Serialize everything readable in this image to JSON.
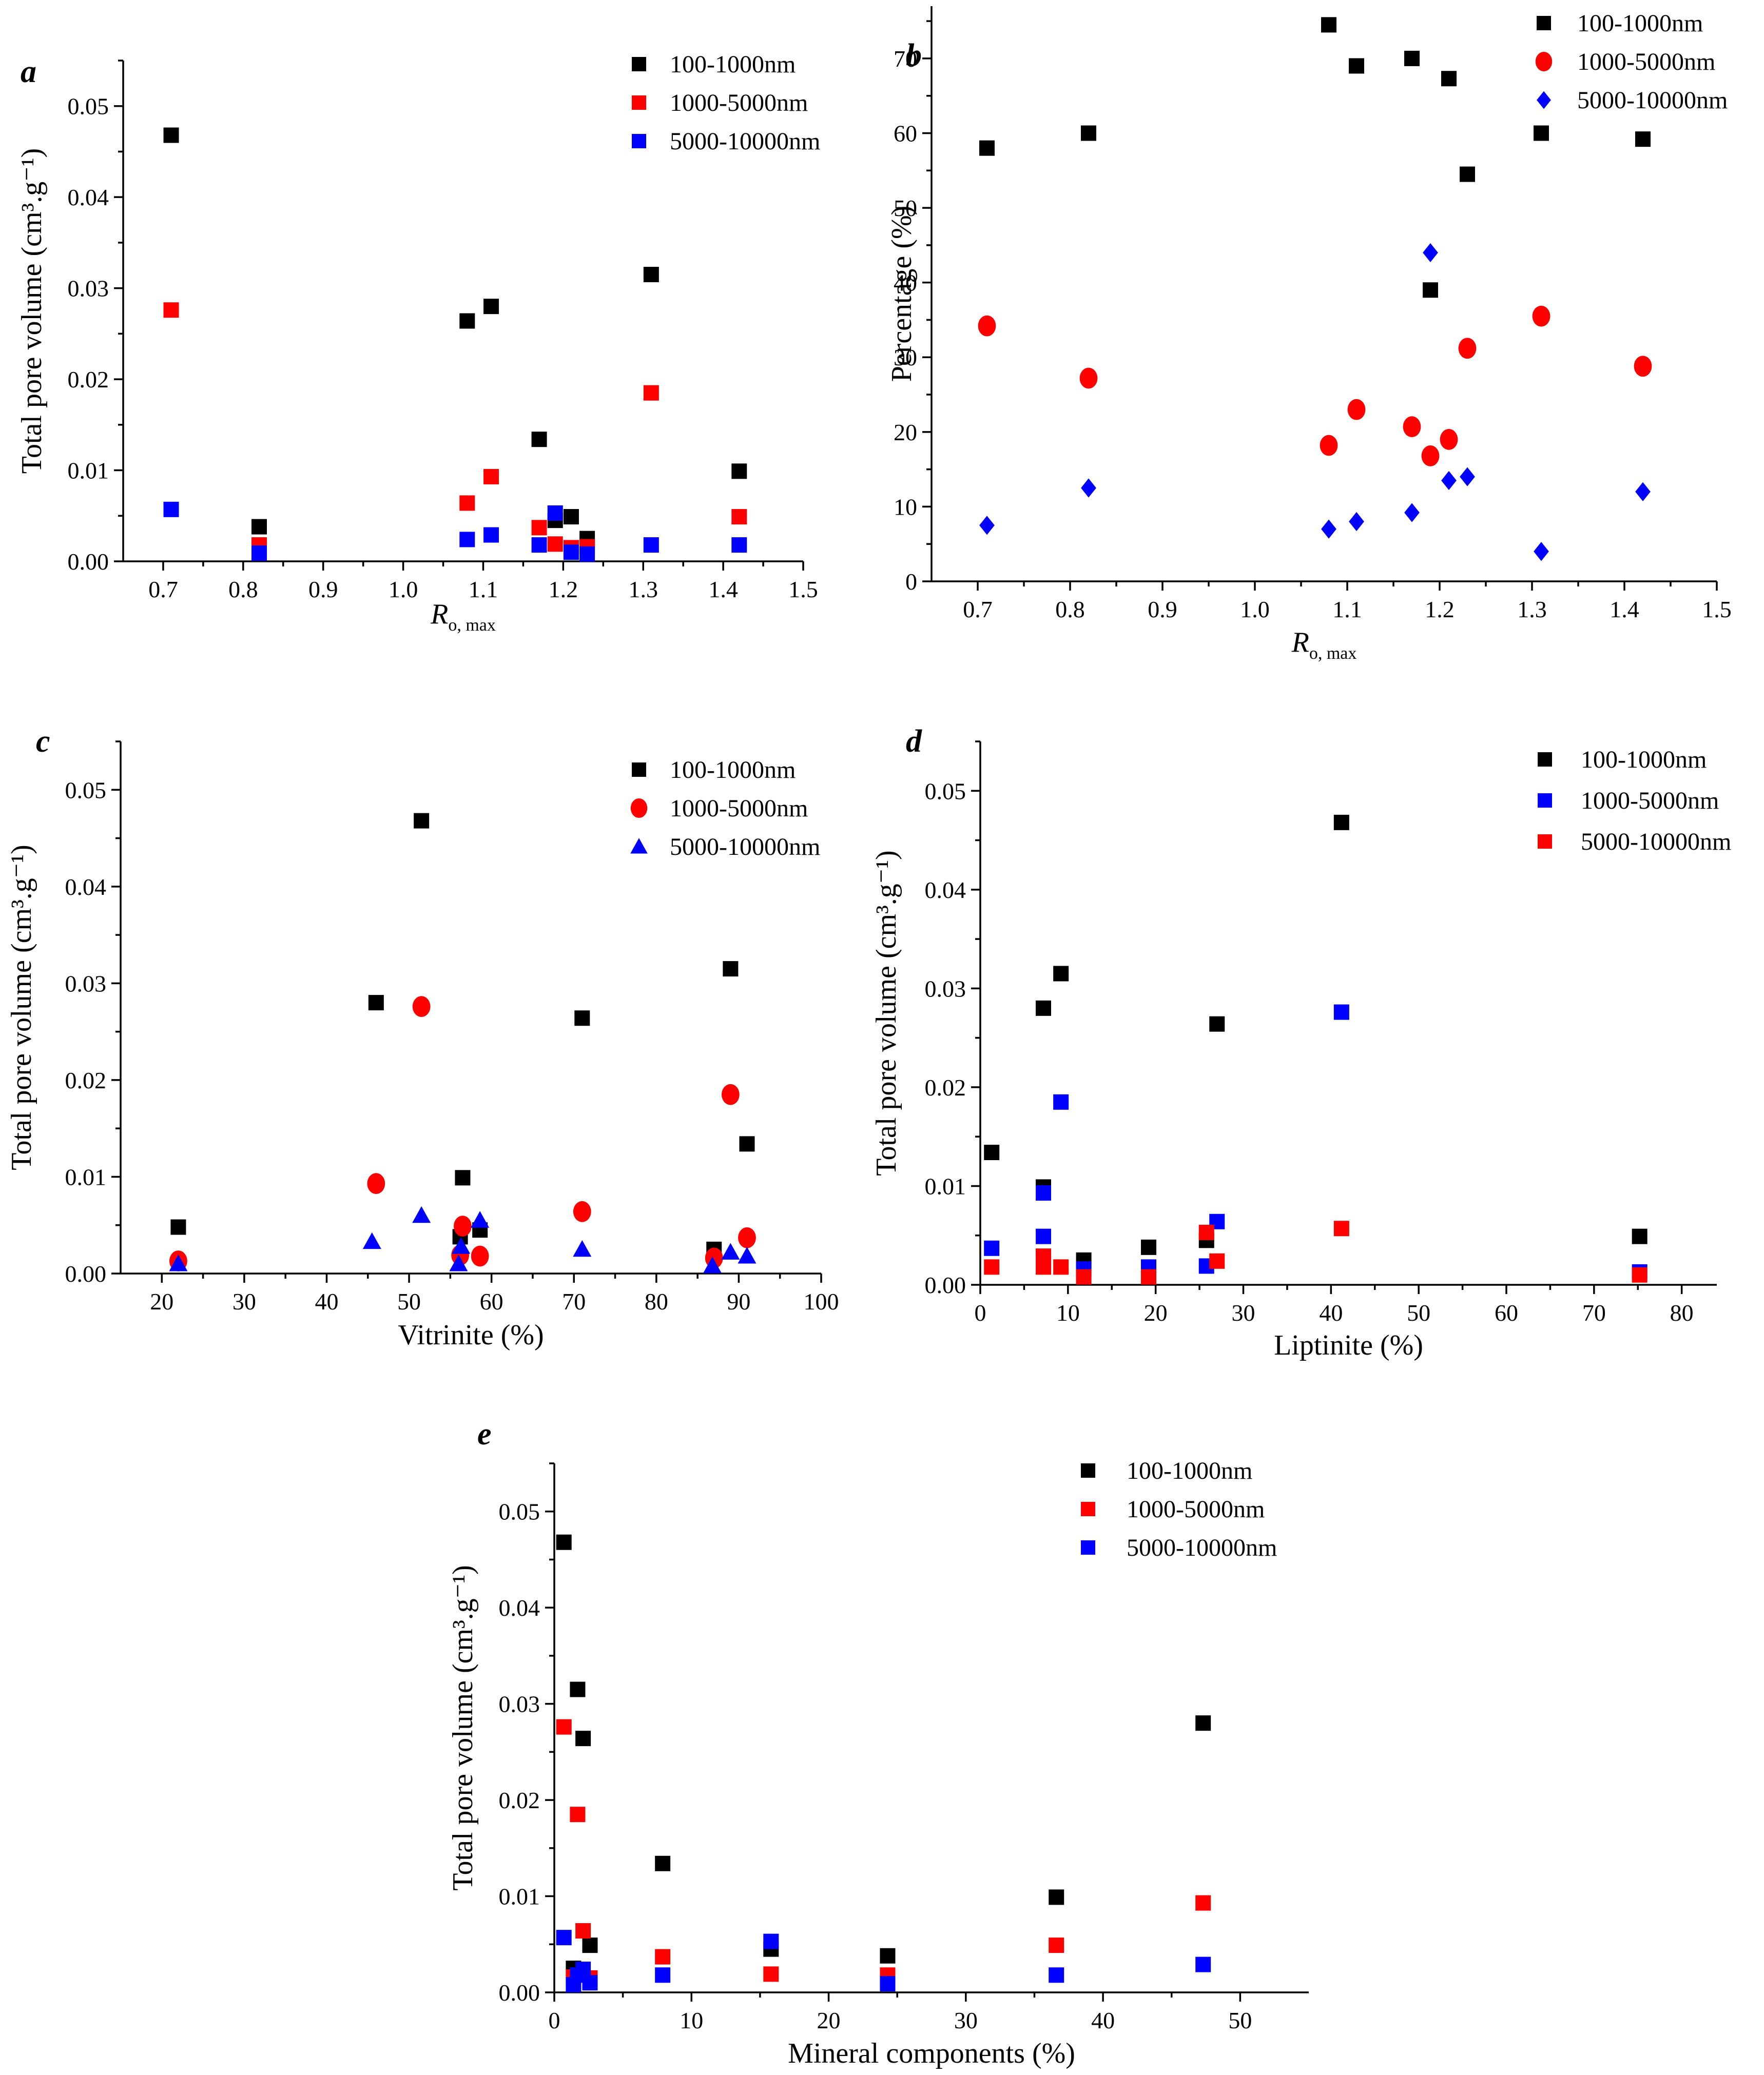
{
  "colors": {
    "black": "#000000",
    "red": "#ff0000",
    "blue": "#0000ff"
  },
  "chart_data": [
    {
      "type": "scatter",
      "panel": "a",
      "xlabel_main": "R",
      "xlabel_sub": "o,  max",
      "ylabel": "Total pore volume (cm³.g⁻¹)",
      "xlim": [
        0.65,
        1.5
      ],
      "ylim": [
        0,
        0.055
      ],
      "xticks": [
        0.7,
        0.8,
        0.9,
        1.0,
        1.1,
        1.2,
        1.3,
        1.4,
        1.5
      ],
      "xtick_labels": [
        "0.7",
        "0.8",
        "0.9",
        "1.0",
        "1.1",
        "1.2",
        "1.3",
        "1.4",
        "1.5"
      ],
      "yticks": [
        0,
        0.01,
        0.02,
        0.03,
        0.04,
        0.05
      ],
      "ytick_labels": [
        "0.00",
        "0.01",
        "0.02",
        "0.03",
        "0.04",
        "0.05"
      ],
      "legend_position": "top-right",
      "series": [
        {
          "name": "100-1000nm",
          "color": "#000000",
          "marker": "square",
          "points": [
            [
              0.71,
              0.0468
            ],
            [
              0.82,
              0.0038
            ],
            [
              1.08,
              0.0264
            ],
            [
              1.11,
              0.028
            ],
            [
              1.17,
              0.0134
            ],
            [
              1.19,
              0.0045
            ],
            [
              1.21,
              0.0049
            ],
            [
              1.23,
              0.0025
            ],
            [
              1.31,
              0.0315
            ],
            [
              1.42,
              0.0099
            ]
          ]
        },
        {
          "name": "1000-5000nm",
          "color": "#ff0000",
          "marker": "square",
          "points": [
            [
              0.71,
              0.0276
            ],
            [
              0.82,
              0.0018
            ],
            [
              1.08,
              0.0064
            ],
            [
              1.11,
              0.0093
            ],
            [
              1.17,
              0.0037
            ],
            [
              1.19,
              0.0019
            ],
            [
              1.21,
              0.0015
            ],
            [
              1.23,
              0.0016
            ],
            [
              1.31,
              0.0185
            ],
            [
              1.42,
              0.0049
            ]
          ]
        },
        {
          "name": "5000-10000nm",
          "color": "#0000ff",
          "marker": "square",
          "points": [
            [
              0.71,
              0.0057
            ],
            [
              0.82,
              0.0009
            ],
            [
              1.08,
              0.0024
            ],
            [
              1.11,
              0.0029
            ],
            [
              1.17,
              0.0018
            ],
            [
              1.19,
              0.0053
            ],
            [
              1.21,
              0.001
            ],
            [
              1.23,
              0.0008
            ],
            [
              1.31,
              0.0018
            ],
            [
              1.42,
              0.0018
            ]
          ]
        }
      ]
    },
    {
      "type": "scatter",
      "panel": "b",
      "xlabel_main": "R",
      "xlabel_sub": "o,  max",
      "ylabel": "Percentage (%)",
      "xlim": [
        0.65,
        1.5
      ],
      "ylim": [
        0,
        77
      ],
      "xticks": [
        0.7,
        0.8,
        0.9,
        1.0,
        1.1,
        1.2,
        1.3,
        1.4,
        1.5
      ],
      "xtick_labels": [
        "0.7",
        "0.8",
        "0.9",
        "1.0",
        "1.1",
        "1.2",
        "1.3",
        "1.4",
        "1.5"
      ],
      "yticks": [
        0,
        10,
        20,
        30,
        40,
        50,
        60,
        70
      ],
      "ytick_labels": [
        "0",
        "10",
        "20",
        "30",
        "40",
        "50",
        "60",
        "70"
      ],
      "legend_position": "top-right",
      "series": [
        {
          "name": "100-1000nm",
          "color": "#000000",
          "marker": "square",
          "points": [
            [
              0.71,
              58.0
            ],
            [
              0.82,
              60.0
            ],
            [
              1.08,
              74.5
            ],
            [
              1.11,
              69.0
            ],
            [
              1.17,
              70.0
            ],
            [
              1.19,
              39.0
            ],
            [
              1.21,
              67.3
            ],
            [
              1.23,
              54.5
            ],
            [
              1.31,
              60.0
            ],
            [
              1.42,
              59.2
            ]
          ]
        },
        {
          "name": "1000-5000nm",
          "color": "#ff0000",
          "marker": "circle",
          "points": [
            [
              0.71,
              34.2
            ],
            [
              0.82,
              27.2
            ],
            [
              1.08,
              18.2
            ],
            [
              1.11,
              23.0
            ],
            [
              1.17,
              20.7
            ],
            [
              1.19,
              16.8
            ],
            [
              1.21,
              19.0
            ],
            [
              1.23,
              31.2
            ],
            [
              1.31,
              35.5
            ],
            [
              1.42,
              28.8
            ]
          ]
        },
        {
          "name": "5000-10000nm",
          "color": "#0000ff",
          "marker": "diamond",
          "points": [
            [
              0.71,
              7.5
            ],
            [
              0.82,
              12.5
            ],
            [
              1.08,
              7.0
            ],
            [
              1.11,
              8.0
            ],
            [
              1.17,
              9.2
            ],
            [
              1.19,
              44.0
            ],
            [
              1.21,
              13.5
            ],
            [
              1.23,
              14.0
            ],
            [
              1.31,
              4.0
            ],
            [
              1.42,
              12.0
            ]
          ]
        }
      ]
    },
    {
      "type": "scatter",
      "panel": "c",
      "xlabel_main": "Vitrinite (%)",
      "xlabel_sub": "",
      "ylabel": "Total pore volume (cm³.g⁻¹)",
      "xlim": [
        15,
        100
      ],
      "ylim": [
        0,
        0.055
      ],
      "xticks": [
        20,
        30,
        40,
        50,
        60,
        70,
        80,
        90,
        100
      ],
      "xtick_labels": [
        "20",
        "30",
        "40",
        "50",
        "60",
        "70",
        "80",
        "90",
        "100"
      ],
      "yticks": [
        0,
        0.01,
        0.02,
        0.03,
        0.04,
        0.05
      ],
      "ytick_labels": [
        "0.00",
        "0.01",
        "0.02",
        "0.03",
        "0.04",
        "0.05"
      ],
      "legend_position": "top-right",
      "series": [
        {
          "name": "100-1000nm",
          "color": "#000000",
          "marker": "square",
          "points": [
            [
              22,
              0.0048
            ],
            [
              46,
              0.028
            ],
            [
              51.5,
              0.0468
            ],
            [
              56.5,
              0.0099
            ],
            [
              56.2,
              0.0038
            ],
            [
              58.6,
              0.0045
            ],
            [
              71,
              0.0264
            ],
            [
              87,
              0.0025
            ],
            [
              89,
              0.0315
            ],
            [
              91,
              0.0134
            ]
          ]
        },
        {
          "name": "1000-5000nm",
          "color": "#ff0000",
          "marker": "circle",
          "points": [
            [
              22,
              0.0013
            ],
            [
              46,
              0.0093
            ],
            [
              51.5,
              0.0276
            ],
            [
              56.5,
              0.0049
            ],
            [
              56.2,
              0.0019
            ],
            [
              58.6,
              0.0018
            ],
            [
              71,
              0.0064
            ],
            [
              87,
              0.0016
            ],
            [
              89,
              0.0185
            ],
            [
              91,
              0.0037
            ]
          ]
        },
        {
          "name": "5000-10000nm",
          "color": "#0000ff",
          "marker": "triangle",
          "points": [
            [
              22,
              0.001
            ],
            [
              45.5,
              0.0033
            ],
            [
              51.5,
              0.006
            ],
            [
              56.0,
              0.001
            ],
            [
              56.3,
              0.0028
            ],
            [
              58.6,
              0.0055
            ],
            [
              71,
              0.0025
            ],
            [
              86.8,
              0.0008
            ],
            [
              89,
              0.0022
            ],
            [
              91,
              0.0018
            ]
          ]
        }
      ]
    },
    {
      "type": "scatter",
      "panel": "d",
      "xlabel_main": "Liptinite (%)",
      "xlabel_sub": "",
      "ylabel": "Total pore volume (cm³.g⁻¹)",
      "xlim": [
        0,
        84
      ],
      "ylim": [
        0,
        0.055
      ],
      "xticks": [
        0,
        10,
        20,
        30,
        40,
        50,
        60,
        70,
        80
      ],
      "xtick_labels": [
        "0",
        "10",
        "20",
        "30",
        "40",
        "50",
        "60",
        "70",
        "80"
      ],
      "yticks": [
        0,
        0.01,
        0.02,
        0.03,
        0.04,
        0.05
      ],
      "ytick_labels": [
        "0.00",
        "0.01",
        "0.02",
        "0.03",
        "0.04",
        "0.05"
      ],
      "legend_position": "top-right",
      "series": [
        {
          "name": "100-1000nm",
          "color": "#000000",
          "marker": "square",
          "points": [
            [
              1.3,
              0.0134
            ],
            [
              7.2,
              0.0099
            ],
            [
              7.2,
              0.028
            ],
            [
              9.2,
              0.0315
            ],
            [
              11.8,
              0.0025
            ],
            [
              19.2,
              0.0038
            ],
            [
              25.8,
              0.0045
            ],
            [
              27,
              0.0264
            ],
            [
              41.2,
              0.0468
            ],
            [
              75.2,
              0.0049
            ]
          ]
        },
        {
          "name": "1000-5000nm",
          "color": "#0000ff",
          "marker": "square",
          "points": [
            [
              1.3,
              0.0037
            ],
            [
              7.2,
              0.0049
            ],
            [
              7.2,
              0.0093
            ],
            [
              9.2,
              0.0185
            ],
            [
              11.8,
              0.0016
            ],
            [
              19.2,
              0.0018
            ],
            [
              25.8,
              0.0019
            ],
            [
              27,
              0.0064
            ],
            [
              41.2,
              0.0276
            ],
            [
              75.2,
              0.0013
            ]
          ]
        },
        {
          "name": "5000-10000nm",
          "color": "#ff0000",
          "marker": "square",
          "points": [
            [
              1.3,
              0.0018
            ],
            [
              7.2,
              0.0029
            ],
            [
              7.2,
              0.0018
            ],
            [
              9.2,
              0.0018
            ],
            [
              11.8,
              0.0008
            ],
            [
              19.2,
              0.0008
            ],
            [
              25.8,
              0.0053
            ],
            [
              27,
              0.0024
            ],
            [
              41.2,
              0.0057
            ],
            [
              75.2,
              0.001
            ]
          ]
        }
      ]
    },
    {
      "type": "scatter",
      "panel": "e",
      "xlabel_main": "Mineral components (%)",
      "xlabel_sub": "",
      "ylabel": "Total pore volume (cm³.g⁻¹)",
      "xlim": [
        0,
        55
      ],
      "ylim": [
        0,
        0.055
      ],
      "xticks": [
        0,
        10,
        20,
        30,
        40,
        50
      ],
      "xtick_labels": [
        "0",
        "10",
        "20",
        "30",
        "40",
        "50"
      ],
      "yticks": [
        0,
        0.01,
        0.02,
        0.03,
        0.04,
        0.05
      ],
      "ytick_labels": [
        "0.00",
        "0.01",
        "0.02",
        "0.03",
        "0.04",
        "0.05"
      ],
      "legend_position": "top-right",
      "series": [
        {
          "name": "100-1000nm",
          "color": "#000000",
          "marker": "square",
          "points": [
            [
              0.7,
              0.0468
            ],
            [
              1.4,
              0.0025
            ],
            [
              1.7,
              0.0315
            ],
            [
              2.1,
              0.0264
            ],
            [
              2.6,
              0.0049
            ],
            [
              7.9,
              0.0134
            ],
            [
              15.8,
              0.0045
            ],
            [
              24.3,
              0.0038
            ],
            [
              36.6,
              0.0099
            ],
            [
              47.3,
              0.028
            ]
          ]
        },
        {
          "name": "1000-5000nm",
          "color": "#ff0000",
          "marker": "square",
          "points": [
            [
              0.7,
              0.0276
            ],
            [
              1.4,
              0.0016
            ],
            [
              1.7,
              0.0185
            ],
            [
              2.1,
              0.0064
            ],
            [
              2.6,
              0.0015
            ],
            [
              7.9,
              0.0037
            ],
            [
              15.8,
              0.0019
            ],
            [
              24.3,
              0.0018
            ],
            [
              36.6,
              0.0049
            ],
            [
              47.3,
              0.0093
            ]
          ]
        },
        {
          "name": "5000-10000nm",
          "color": "#0000ff",
          "marker": "square",
          "points": [
            [
              0.7,
              0.0057
            ],
            [
              1.4,
              0.0008
            ],
            [
              1.7,
              0.0018
            ],
            [
              2.1,
              0.0024
            ],
            [
              2.6,
              0.001
            ],
            [
              7.9,
              0.0018
            ],
            [
              15.8,
              0.0053
            ],
            [
              24.3,
              0.0009
            ],
            [
              36.6,
              0.0018
            ],
            [
              47.3,
              0.0029
            ]
          ]
        }
      ]
    }
  ]
}
